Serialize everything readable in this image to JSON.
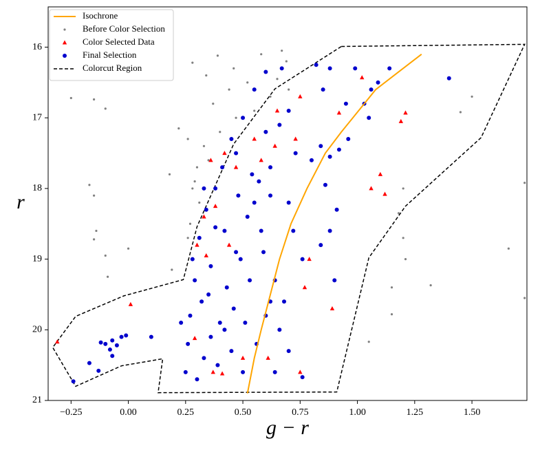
{
  "chart_data": {
    "type": "scatter",
    "x_label": "g − r",
    "y_label": "r",
    "xlim": [
      -0.35,
      1.74
    ],
    "ylim": [
      21,
      15.43
    ],
    "xticks": [
      {
        "value": -0.25,
        "label": "−0.25"
      },
      {
        "value": 0,
        "label": "0.00"
      },
      {
        "value": 0.25,
        "label": "0.25"
      },
      {
        "value": 0.5,
        "label": "0.50"
      },
      {
        "value": 0.75,
        "label": "0.75"
      },
      {
        "value": 1,
        "label": "1.00"
      },
      {
        "value": 1.25,
        "label": "1.25"
      },
      {
        "value": 1.5,
        "label": "1.50"
      }
    ],
    "yticks": [
      16,
      17,
      18,
      19,
      20,
      21
    ],
    "legend": "upper left",
    "series": [
      {
        "name": "Isochrone",
        "color": "#ffa500",
        "marker": "line",
        "x": [
          0.52,
          0.55,
          0.58,
          0.62,
          0.66,
          0.71,
          0.78,
          0.86,
          0.93,
          0.98,
          1.08,
          1.18,
          1.28
        ],
        "y": [
          20.9,
          20.4,
          20.0,
          19.5,
          19.0,
          18.5,
          18.0,
          17.5,
          17.2,
          17.0,
          16.6,
          16.35,
          16.1
        ]
      },
      {
        "name": "Before Color Selection",
        "color": "#808080",
        "marker": "dot",
        "x": [
          -0.25,
          -0.15,
          -0.1,
          -0.17,
          -0.15,
          -0.14,
          -0.15,
          -0.1,
          -0.09,
          0.0,
          0.22,
          0.18,
          0.28,
          0.34,
          0.39,
          0.46,
          0.52,
          0.6,
          0.67,
          0.69,
          0.62,
          0.55,
          0.47,
          0.4,
          0.33,
          0.3,
          0.28,
          0.31,
          0.27,
          0.26,
          0.29,
          0.35,
          0.37,
          0.44,
          0.58,
          0.65,
          0.7,
          0.26,
          1.45,
          1.18,
          1.2,
          1.21,
          1.15,
          1.15,
          1.05,
          1.32,
          1.66,
          1.73,
          1.73,
          1.5,
          1.2,
          0.19
        ],
        "y": [
          16.72,
          16.74,
          16.87,
          17.95,
          18.1,
          18.6,
          18.72,
          18.95,
          19.25,
          18.85,
          17.15,
          17.8,
          16.22,
          16.4,
          16.12,
          16.3,
          16.5,
          16.35,
          16.05,
          16.2,
          16.7,
          16.9,
          17.0,
          17.2,
          17.4,
          17.7,
          18.0,
          18.2,
          18.5,
          18.7,
          17.9,
          17.6,
          16.8,
          16.6,
          16.1,
          16.45,
          16.6,
          17.3,
          16.92,
          18.35,
          18.7,
          19.0,
          19.4,
          19.78,
          20.17,
          19.37,
          18.85,
          17.92,
          19.55,
          16.7,
          18.0,
          19.15
        ]
      },
      {
        "name": "Color Selected Data",
        "color": "#ff0000",
        "marker": "triangle",
        "x": [
          -0.31,
          0.01,
          0.29,
          0.37,
          0.41,
          0.75,
          0.89,
          0.77,
          0.61,
          0.5,
          0.33,
          0.3,
          0.36,
          0.42,
          0.47,
          0.55,
          0.64,
          0.73,
          0.75,
          0.92,
          1.02,
          1.21,
          1.19,
          1.1,
          1.06,
          1.12,
          0.38,
          0.44,
          0.34,
          0.58,
          0.65,
          0.79
        ],
        "y": [
          20.17,
          19.64,
          20.12,
          20.6,
          20.62,
          20.6,
          19.7,
          19.4,
          20.4,
          20.4,
          18.4,
          18.8,
          17.6,
          17.5,
          17.7,
          17.3,
          17.4,
          17.3,
          16.7,
          16.93,
          16.43,
          16.93,
          17.05,
          17.8,
          18.0,
          18.08,
          18.25,
          18.8,
          18.95,
          17.6,
          16.9,
          19.0
        ]
      },
      {
        "name": "Final Selection",
        "color": "#0000cd",
        "marker": "dot-large",
        "x": [
          -0.24,
          -0.17,
          -0.13,
          -0.12,
          -0.1,
          -0.08,
          -0.07,
          -0.05,
          -0.07,
          -0.03,
          -0.01,
          0.1,
          0.23,
          0.27,
          0.26,
          0.25,
          0.3,
          0.33,
          0.36,
          0.32,
          0.29,
          0.28,
          0.31,
          0.34,
          0.38,
          0.41,
          0.45,
          0.5,
          0.55,
          0.6,
          0.67,
          0.57,
          0.52,
          0.47,
          0.43,
          0.4,
          0.45,
          0.5,
          0.56,
          0.6,
          0.64,
          0.59,
          0.55,
          0.62,
          0.66,
          0.7,
          0.73,
          0.7,
          0.72,
          0.68,
          0.66,
          0.7,
          0.76,
          0.76,
          0.8,
          0.84,
          0.85,
          0.88,
          0.82,
          0.95,
          0.99,
          1.03,
          1.06,
          1.09,
          1.14,
          1.05,
          0.96,
          0.92,
          0.88,
          0.86,
          0.91,
          0.9,
          0.88,
          0.84,
          1.4,
          0.36,
          0.38,
          0.48,
          0.53,
          0.46,
          0.42,
          0.58,
          0.62,
          0.33,
          0.35,
          0.51,
          0.64,
          0.39,
          0.47,
          0.54,
          0.6,
          0.42,
          0.49,
          0.62
        ],
        "y": [
          20.73,
          20.47,
          20.58,
          20.18,
          20.2,
          20.28,
          20.15,
          20.22,
          20.37,
          20.1,
          20.08,
          20.1,
          19.9,
          19.8,
          20.2,
          20.6,
          20.7,
          20.4,
          20.1,
          19.6,
          19.3,
          19.0,
          18.7,
          18.3,
          18.0,
          17.7,
          17.3,
          17.0,
          16.6,
          16.35,
          16.3,
          17.9,
          18.4,
          18.9,
          19.4,
          19.9,
          20.3,
          20.6,
          20.2,
          19.8,
          19.3,
          18.9,
          18.2,
          17.7,
          17.1,
          16.9,
          17.5,
          18.2,
          18.6,
          19.6,
          20.0,
          20.3,
          20.67,
          19.0,
          17.6,
          17.4,
          16.6,
          16.3,
          16.25,
          16.8,
          16.3,
          16.8,
          16.6,
          16.5,
          16.3,
          17.0,
          17.3,
          17.45,
          17.55,
          17.95,
          18.3,
          19.3,
          18.6,
          18.8,
          16.44,
          19.1,
          18.55,
          18.1,
          19.3,
          19.7,
          20.0,
          18.6,
          18.1,
          18.0,
          19.5,
          19.9,
          20.6,
          20.5,
          17.5,
          17.8,
          17.2,
          18.6,
          19.0,
          19.6
        ]
      },
      {
        "name": "Colorcut Region",
        "color": "#000000",
        "marker": "dashed",
        "x": [
          0.93,
          1.73,
          1.54,
          1.21,
          1.05,
          0.91,
          0.13,
          0.15,
          -0.03,
          -0.23,
          -0.33,
          -0.23,
          -0.02,
          0.24,
          0.3,
          0.46,
          0.64,
          0.93
        ],
        "y": [
          15.99,
          15.96,
          17.28,
          18.25,
          18.98,
          20.88,
          20.89,
          20.41,
          20.51,
          20.8,
          20.25,
          19.81,
          19.52,
          19.29,
          18.54,
          17.37,
          16.59,
          15.99
        ]
      }
    ]
  }
}
